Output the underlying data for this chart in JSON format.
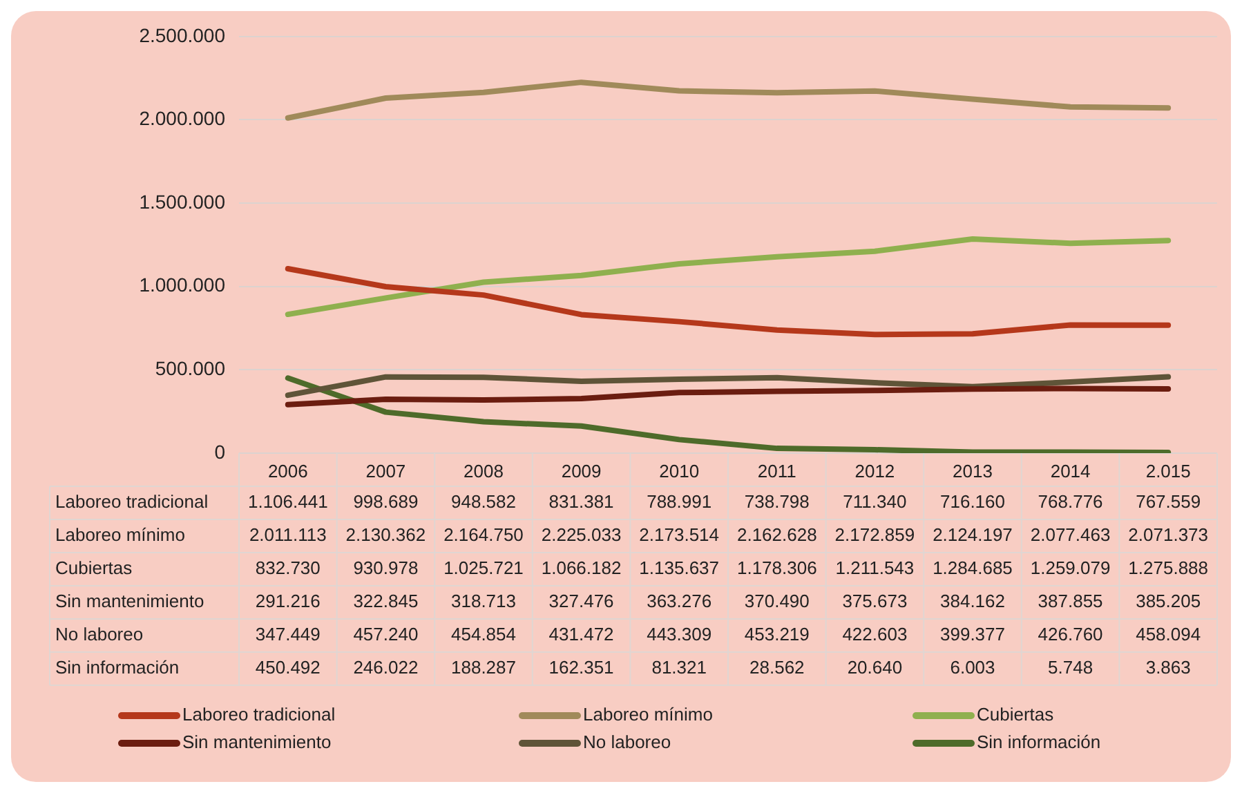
{
  "chart_data": {
    "type": "line",
    "categories": [
      "2006",
      "2007",
      "2008",
      "2009",
      "2010",
      "2011",
      "2012",
      "2013",
      "2014",
      "2.015"
    ],
    "series": [
      {
        "name": "Laboreo tradicional",
        "color": "#b5381b",
        "values": [
          1106441,
          998689,
          948582,
          831381,
          788991,
          738798,
          711340,
          716160,
          768776,
          767559
        ],
        "value_labels": [
          "1.106.441",
          "998.689",
          "948.582",
          "831.381",
          "788.991",
          "738.798",
          "711.340",
          "716.160",
          "768.776",
          "767.559"
        ]
      },
      {
        "name": "Laboreo mínimo",
        "color": "#a08a5a",
        "values": [
          2011113,
          2130362,
          2164750,
          2225033,
          2173514,
          2162628,
          2172859,
          2124197,
          2077463,
          2071373
        ],
        "value_labels": [
          "2.011.113",
          "2.130.362",
          "2.164.750",
          "2.225.033",
          "2.173.514",
          "2.162.628",
          "2.172.859",
          "2.124.197",
          "2.077.463",
          "2.071.373"
        ]
      },
      {
        "name": "Cubiertas",
        "color": "#8fb04e",
        "values": [
          832730,
          930978,
          1025721,
          1066182,
          1135637,
          1178306,
          1211543,
          1284685,
          1259079,
          1275888
        ],
        "value_labels": [
          "832.730",
          "930.978",
          "1.025.721",
          "1.066.182",
          "1.135.637",
          "1.178.306",
          "1.211.543",
          "1.284.685",
          "1.259.079",
          "1.275.888"
        ]
      },
      {
        "name": "Sin mantenimiento",
        "color": "#6b1d10",
        "values": [
          291216,
          322845,
          318713,
          327476,
          363276,
          370490,
          375673,
          384162,
          387855,
          385205
        ],
        "value_labels": [
          "291.216",
          "322.845",
          "318.713",
          "327.476",
          "363.276",
          "370.490",
          "375.673",
          "384.162",
          "387.855",
          "385.205"
        ]
      },
      {
        "name": "No laboreo",
        "color": "#5f5438",
        "values": [
          347449,
          457240,
          454854,
          431472,
          443309,
          453219,
          422603,
          399377,
          426760,
          458094
        ],
        "value_labels": [
          "347.449",
          "457.240",
          "454.854",
          "431.472",
          "443.309",
          "453.219",
          "422.603",
          "399.377",
          "426.760",
          "458.094"
        ]
      },
      {
        "name": "Sin información",
        "color": "#4e6b2a",
        "values": [
          450492,
          246022,
          188287,
          162351,
          81321,
          28562,
          20640,
          6003,
          5748,
          3863
        ],
        "value_labels": [
          "450.492",
          "246.022",
          "188.287",
          "162.351",
          "81.321",
          "28.562",
          "20.640",
          "6.003",
          "5.748",
          "3.863"
        ]
      }
    ],
    "ylim": [
      0,
      2500000
    ],
    "yticks": [
      0,
      {
        "value": 500000,
        "label": "500.000"
      },
      {
        "value": 1000000,
        "label": "1.000.000"
      },
      {
        "value": 1500000,
        "label": "1.500.000"
      },
      {
        "value": 2000000,
        "label": "2.000.000"
      },
      {
        "value": 2500000,
        "label": "2.500.000"
      }
    ],
    "grid": "y",
    "legend": "bottom",
    "marker": "none",
    "line_style": "solid"
  }
}
